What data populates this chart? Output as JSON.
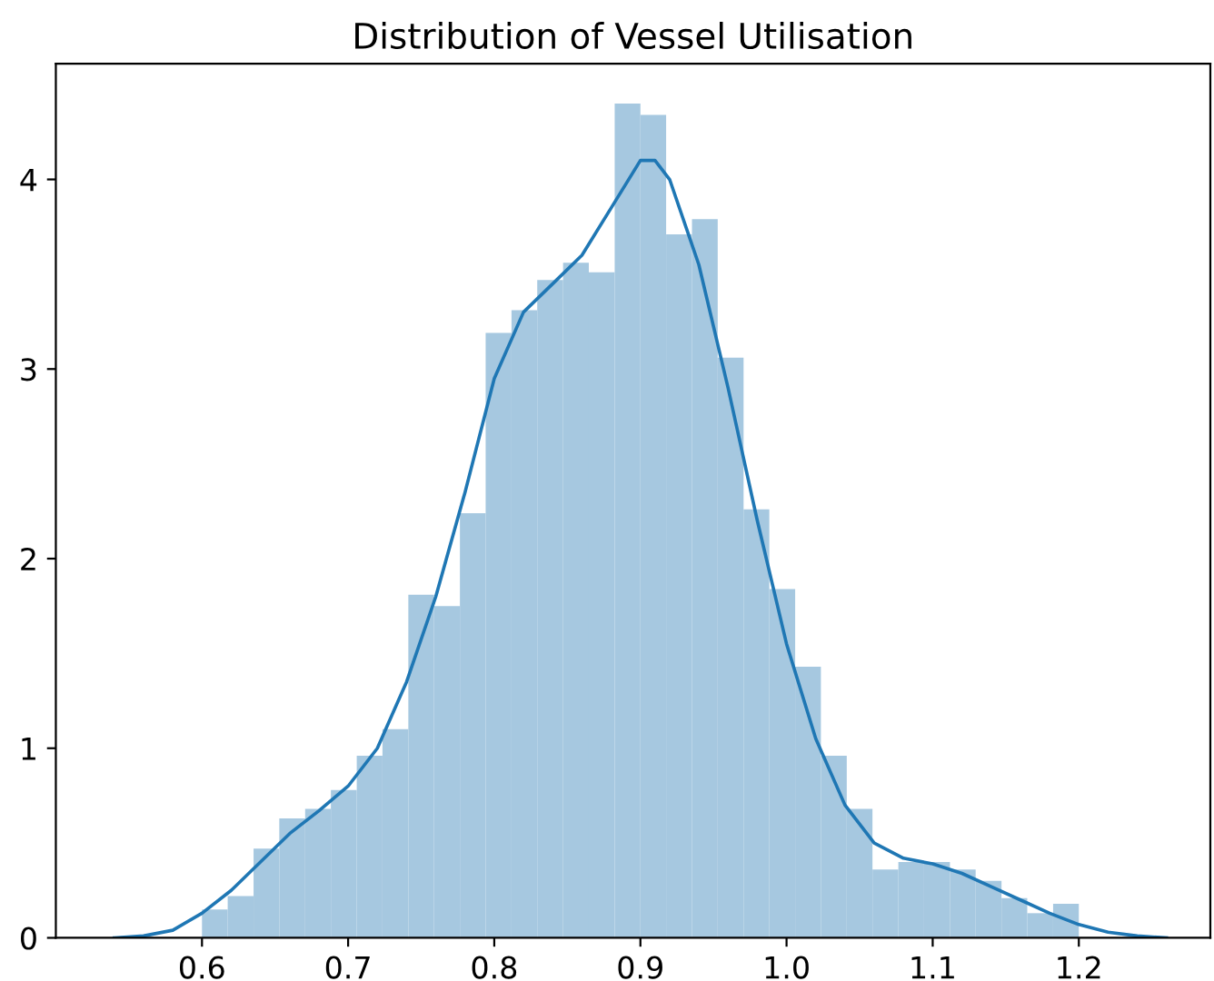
{
  "chart_data": {
    "type": "histogram",
    "title": "Distribution of Vessel Utilisation",
    "bins": [
      0.6,
      0.6176,
      0.6353,
      0.6529,
      0.6706,
      0.6882,
      0.7059,
      0.7235,
      0.7412,
      0.7588,
      0.7765,
      0.7941,
      0.8118,
      0.8294,
      0.8471,
      0.8647,
      0.8824,
      0.9,
      0.9176,
      0.9353,
      0.9529,
      0.9706,
      0.9882,
      1.0059,
      1.0235,
      1.0412,
      1.0588,
      1.0765,
      1.0941,
      1.1118,
      1.1294,
      1.1471,
      1.1647,
      1.1824,
      1.2
    ],
    "values": [
      0.15,
      0.22,
      0.47,
      0.63,
      0.68,
      0.78,
      0.96,
      1.1,
      1.81,
      1.75,
      2.24,
      3.19,
      3.31,
      3.47,
      3.56,
      3.51,
      4.4,
      4.34,
      3.71,
      3.79,
      3.06,
      2.26,
      1.84,
      1.43,
      0.96,
      0.68,
      0.36,
      0.4,
      0.4,
      0.36,
      0.3,
      0.21,
      0.13,
      0.18
    ],
    "color": "#a6c8e0",
    "series": [
      {
        "type": "line",
        "color": "#1f77b4",
        "x": [
          0.54,
          0.56,
          0.58,
          0.6,
          0.62,
          0.64,
          0.66,
          0.68,
          0.7,
          0.72,
          0.74,
          0.76,
          0.78,
          0.8,
          0.82,
          0.84,
          0.86,
          0.88,
          0.9,
          0.91,
          0.92,
          0.94,
          0.96,
          0.98,
          1.0,
          1.02,
          1.04,
          1.06,
          1.08,
          1.1,
          1.12,
          1.14,
          1.16,
          1.18,
          1.2,
          1.22,
          1.24,
          1.26
        ],
        "values": [
          0.0,
          0.01,
          0.04,
          0.13,
          0.25,
          0.4,
          0.55,
          0.67,
          0.8,
          1.0,
          1.35,
          1.8,
          2.35,
          2.95,
          3.3,
          3.45,
          3.6,
          3.85,
          4.1,
          4.1,
          4.0,
          3.55,
          2.9,
          2.2,
          1.55,
          1.05,
          0.7,
          0.5,
          0.42,
          0.39,
          0.34,
          0.27,
          0.2,
          0.13,
          0.07,
          0.03,
          0.01,
          0.0
        ]
      }
    ],
    "xlim": [
      0.5,
      1.29
    ],
    "ylim": [
      0,
      4.61
    ],
    "xticks": [
      {
        "value": 0.6,
        "label": "0.6"
      },
      {
        "value": 0.7,
        "label": "0.7"
      },
      {
        "value": 0.8,
        "label": "0.8"
      },
      {
        "value": 0.9,
        "label": "0.9"
      },
      {
        "value": 1.0,
        "label": "1.0"
      },
      {
        "value": 1.1,
        "label": "1.1"
      },
      {
        "value": 1.2,
        "label": "1.2"
      }
    ],
    "yticks": [
      0,
      1,
      2,
      3,
      4
    ]
  }
}
